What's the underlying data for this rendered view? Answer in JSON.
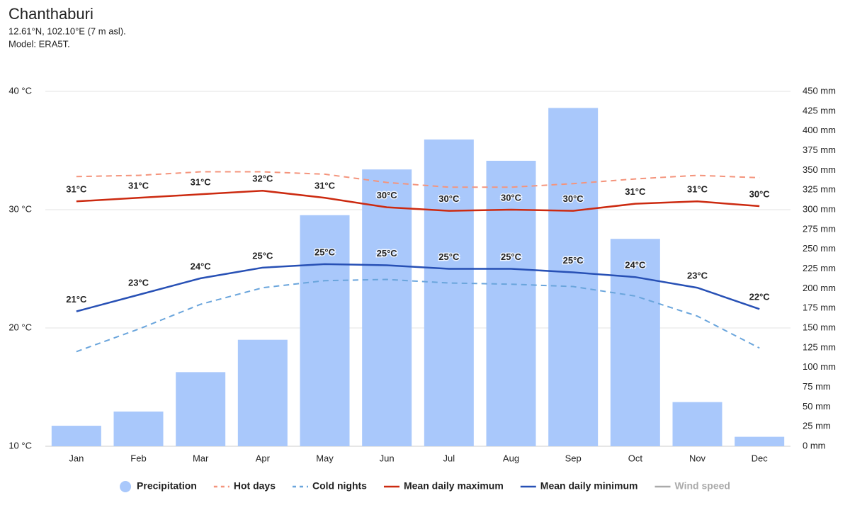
{
  "chart_data": {
    "type": "combo",
    "title": "Chanthaburi",
    "subtitle": [
      "12.61°N, 102.10°E (7 m asl).",
      "Model: ERA5T."
    ],
    "categories": [
      "Jan",
      "Feb",
      "Mar",
      "Apr",
      "May",
      "Jun",
      "Jul",
      "Aug",
      "Sep",
      "Oct",
      "Nov",
      "Dec"
    ],
    "ylim": [
      10,
      40
    ],
    "yticks": [
      {
        "value": 10,
        "label": "10 °C"
      },
      {
        "value": 20,
        "label": "20 °C"
      },
      {
        "value": 30,
        "label": "30 °C"
      },
      {
        "value": 40,
        "label": "40 °C"
      }
    ],
    "y2lim": [
      0,
      450
    ],
    "y2ticks": [
      {
        "value": 0,
        "label": "0 mm"
      },
      {
        "value": 25,
        "label": "25 mm"
      },
      {
        "value": 50,
        "label": "50 mm"
      },
      {
        "value": 75,
        "label": "75 mm"
      },
      {
        "value": 100,
        "label": "100 mm"
      },
      {
        "value": 125,
        "label": "125 mm"
      },
      {
        "value": 150,
        "label": "150 mm"
      },
      {
        "value": 175,
        "label": "175 mm"
      },
      {
        "value": 200,
        "label": "200 mm"
      },
      {
        "value": 225,
        "label": "225 mm"
      },
      {
        "value": 250,
        "label": "250 mm"
      },
      {
        "value": 275,
        "label": "275 mm"
      },
      {
        "value": 300,
        "label": "300 mm"
      },
      {
        "value": 325,
        "label": "325 mm"
      },
      {
        "value": 350,
        "label": "350 mm"
      },
      {
        "value": 375,
        "label": "375 mm"
      },
      {
        "value": 400,
        "label": "400 mm"
      },
      {
        "value": 425,
        "label": "425 mm"
      },
      {
        "value": 450,
        "label": "450 mm"
      }
    ],
    "grid": true,
    "series": [
      {
        "name": "Precipitation",
        "type": "bar",
        "axis": "y2",
        "color": "#a9c8fb",
        "values": [
          26,
          44,
          94,
          135,
          293,
          351,
          389,
          362,
          429,
          263,
          56,
          12
        ]
      },
      {
        "name": "Hot days",
        "type": "line",
        "dashed": true,
        "color": "#f4947c",
        "values": [
          32.8,
          32.9,
          33.2,
          33.2,
          33.0,
          32.3,
          31.9,
          31.9,
          32.2,
          32.6,
          32.9,
          32.7
        ]
      },
      {
        "name": "Cold nights",
        "type": "line",
        "dashed": true,
        "color": "#6aa5dc",
        "values": [
          18.0,
          19.9,
          22.0,
          23.4,
          24.0,
          24.1,
          23.8,
          23.7,
          23.5,
          22.7,
          21.0,
          18.3
        ]
      },
      {
        "name": "Mean daily maximum",
        "type": "line",
        "color": "#cc2a10",
        "values": [
          30.7,
          31.0,
          31.3,
          31.6,
          31.0,
          30.2,
          29.9,
          30.0,
          29.9,
          30.5,
          30.7,
          30.3
        ],
        "value_labels": [
          "31°C",
          "31°C",
          "31°C",
          "32°C",
          "31°C",
          "30°C",
          "30°C",
          "30°C",
          "30°C",
          "31°C",
          "31°C",
          "30°C"
        ]
      },
      {
        "name": "Mean daily minimum",
        "type": "line",
        "color": "#2750b5",
        "values": [
          21.4,
          22.8,
          24.2,
          25.1,
          25.4,
          25.3,
          25.0,
          25.0,
          24.7,
          24.3,
          23.4,
          21.6
        ],
        "value_labels": [
          "21°C",
          "23°C",
          "24°C",
          "25°C",
          "25°C",
          "25°C",
          "25°C",
          "25°C",
          "25°C",
          "24°C",
          "23°C",
          "22°C"
        ]
      },
      {
        "name": "Wind speed",
        "type": "legend-only",
        "color": "#aaaaaa"
      }
    ]
  }
}
